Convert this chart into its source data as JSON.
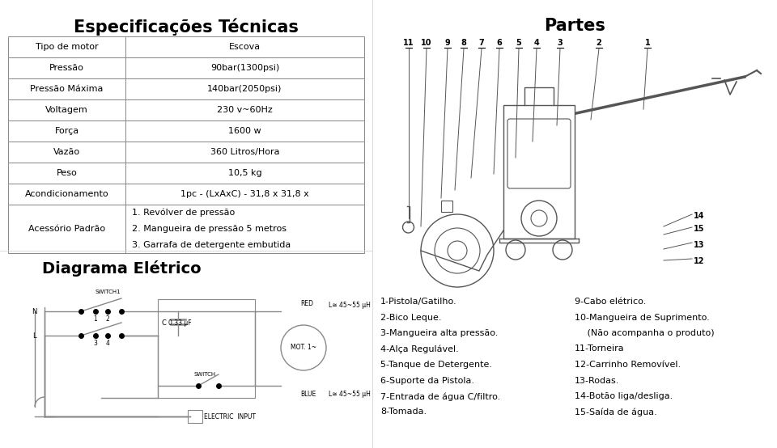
{
  "title_left": "Especificações Técnicas",
  "title_right": "Partes",
  "title_bottom_left": "Diagrama Elétrico",
  "bg_color": "#ffffff",
  "table_data": [
    [
      "Tipo de motor",
      "Escova"
    ],
    [
      "Pressão",
      "90bar(1300psi)"
    ],
    [
      "Pressão Máxima",
      "140bar(2050psi)"
    ],
    [
      "Voltagem",
      "230 v~60Hz"
    ],
    [
      "Força",
      "1600 w"
    ],
    [
      "Vazão",
      "360 Litros/Hora"
    ],
    [
      "Peso",
      "10,5 kg"
    ],
    [
      "Acondicionamento",
      "1pc - (LxAxC) - 31,8 x 31,8 x"
    ],
    [
      "Acessório Padrão",
      "1. Revólver de pressão\n2. Mangueira de pressão 5 metros\n3. Garrafa de detergente embutida"
    ]
  ],
  "parts_list_col1": [
    "1-Pistola/Gatilho.",
    "2-Bico Leque.",
    "3-Mangueira alta pressão.",
    "4-Alça Regulável.",
    "5-Tanque de Detergente.",
    "6-Suporte da Pistola.",
    "7-Entrada de água C/filtro.",
    "8-Tomada."
  ],
  "parts_list_col2": [
    "9-Cabo elétrico.",
    "10-Mangueira de Suprimento.",
    " (Não acompanha o produto)",
    "11-Torneira",
    "12-Carrinho Removível.",
    "13-Rodas.",
    "14-Botão liga/desliga.",
    "15-Saída de água."
  ]
}
